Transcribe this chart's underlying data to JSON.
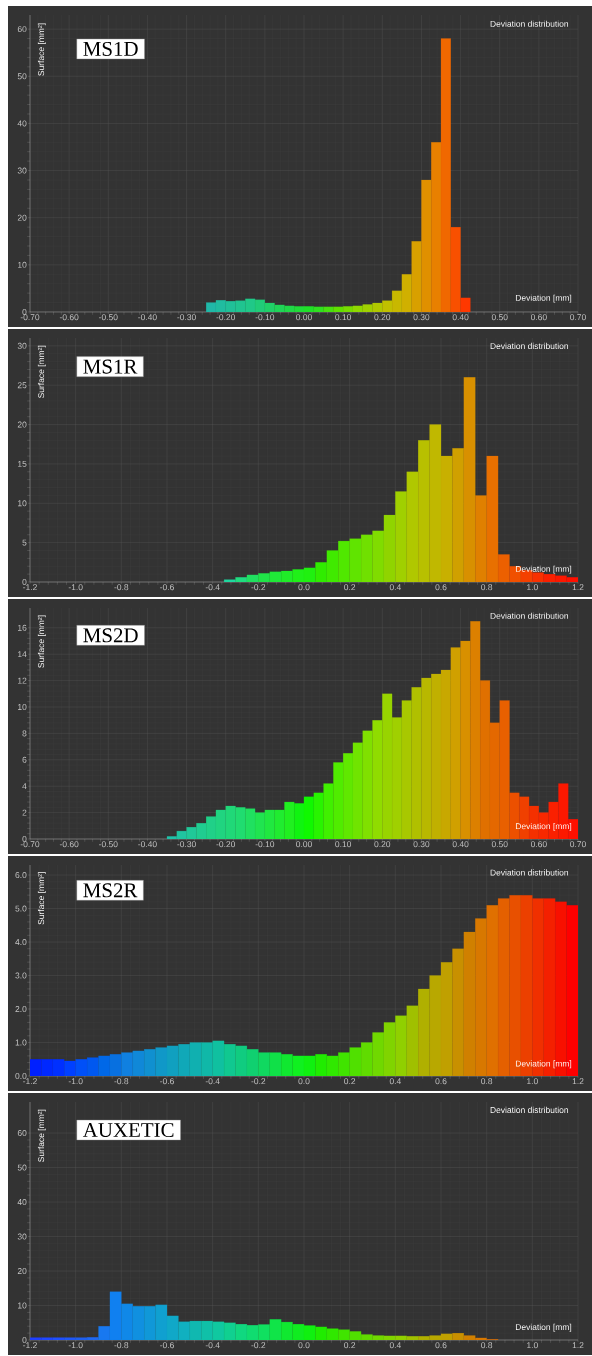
{
  "chart_data": [
    {
      "type": "histogram",
      "title": "MS1D",
      "xlabel": "Deviation [mm]",
      "ylabel": "Surface [mm²]",
      "annotations": [
        "Deviation distribution"
      ],
      "grid": true,
      "xlim": [
        -0.7,
        0.7
      ],
      "ylim": [
        0,
        63
      ],
      "xticks": [
        {
          "value": -0.7,
          "label": "-0.70"
        },
        {
          "value": -0.6,
          "label": "-0.60"
        },
        {
          "value": -0.5,
          "label": "-0.50"
        },
        {
          "value": -0.4,
          "label": "-0.40"
        },
        {
          "value": -0.3,
          "label": "-0.30"
        },
        {
          "value": -0.2,
          "label": "-0.20"
        },
        {
          "value": -0.1,
          "label": "-0.10"
        },
        {
          "value": 0,
          "label": "0.00"
        },
        {
          "value": 0.1,
          "label": "0.10"
        },
        {
          "value": 0.2,
          "label": "0.20"
        },
        {
          "value": 0.3,
          "label": "0.30"
        },
        {
          "value": 0.4,
          "label": "0.40"
        },
        {
          "value": 0.5,
          "label": "0.50"
        },
        {
          "value": 0.6,
          "label": "0.60"
        },
        {
          "value": 0.7,
          "label": "0.70"
        }
      ],
      "yticks": [
        0,
        10,
        20,
        30,
        40,
        50,
        60
      ],
      "bins": [
        -0.25,
        -0.225,
        -0.2,
        -0.175,
        -0.15,
        -0.125,
        -0.1,
        -0.075,
        -0.05,
        -0.025,
        0,
        0.025,
        0.05,
        0.075,
        0.1,
        0.125,
        0.15,
        0.175,
        0.2,
        0.225,
        0.25,
        0.275,
        0.3,
        0.325,
        0.35,
        0.375,
        0.4,
        0.425
      ],
      "values": [
        2.0,
        2.5,
        2.3,
        2.4,
        2.8,
        2.6,
        1.9,
        1.5,
        1.3,
        1.2,
        1.2,
        1.1,
        1.1,
        1.1,
        1.2,
        1.3,
        1.6,
        1.9,
        2.4,
        4.5,
        8,
        15,
        28,
        36,
        58,
        18,
        3
      ],
      "colors": [
        "#20b8a8",
        "#20bca0",
        "#20c098",
        "#20c490",
        "#20c888",
        "#20cc78",
        "#20d068",
        "#20d458",
        "#20d848",
        "#20dc38",
        "#20e028",
        "#30e020",
        "#48e010",
        "#60e000",
        "#78dc00",
        "#90d800",
        "#a0d000",
        "#b0c800",
        "#c0c000",
        "#c8b800",
        "#d0b000",
        "#d8a000",
        "#e09000",
        "#e88000",
        "#f06800",
        "#f85000",
        "#ff3800"
      ]
    },
    {
      "type": "histogram",
      "title": "MS1R",
      "xlabel": "Deviation [mm]",
      "ylabel": "Surface [mm²]",
      "annotations": [
        "Deviation distribution"
      ],
      "grid": true,
      "xlim": [
        -1.2,
        1.2
      ],
      "ylim": [
        0,
        31
      ],
      "xticks": [
        {
          "value": -1.2,
          "label": "-1.2"
        },
        {
          "value": -1.0,
          "label": "-1.0"
        },
        {
          "value": -0.8,
          "label": "-0.8"
        },
        {
          "value": -0.6,
          "label": "-0.6"
        },
        {
          "value": -0.4,
          "label": "-0.4"
        },
        {
          "value": -0.2,
          "label": "-0.2"
        },
        {
          "value": 0,
          "label": "0.0"
        },
        {
          "value": 0.2,
          "label": "0.2"
        },
        {
          "value": 0.4,
          "label": "0.4"
        },
        {
          "value": 0.6,
          "label": "0.6"
        },
        {
          "value": 0.8,
          "label": "0.8"
        },
        {
          "value": 1.0,
          "label": "1.0"
        },
        {
          "value": 1.2,
          "label": "1.2"
        }
      ],
      "yticks": [
        0,
        5,
        10,
        15,
        20,
        25,
        30
      ],
      "bins": [
        -0.35,
        -0.3,
        -0.25,
        -0.2,
        -0.15,
        -0.1,
        -0.05,
        0,
        0.05,
        0.1,
        0.15,
        0.2,
        0.25,
        0.3,
        0.35,
        0.4,
        0.45,
        0.5,
        0.55,
        0.6,
        0.65,
        0.7,
        0.75,
        0.8,
        0.85,
        0.9,
        0.95,
        1.0,
        1.05,
        1.1,
        1.15,
        1.2
      ],
      "values": [
        0.3,
        0.6,
        0.9,
        1.1,
        1.3,
        1.4,
        1.6,
        1.8,
        2.5,
        4.0,
        5.2,
        5.5,
        6.0,
        6.5,
        8.5,
        11.5,
        14,
        18,
        20,
        16,
        17,
        26,
        11,
        16,
        3.5,
        2.0,
        1.5,
        1.2,
        1.0,
        0.8,
        0.6
      ],
      "colors": [
        "#20d8a0",
        "#20dc80",
        "#20e060",
        "#20e448",
        "#20e838",
        "#20ec28",
        "#20f018",
        "#20f010",
        "#30ec00",
        "#40ea00",
        "#50e800",
        "#60e400",
        "#70e000",
        "#80dc00",
        "#90d400",
        "#a0d000",
        "#b0c800",
        "#b8c000",
        "#c0b800",
        "#c8b000",
        "#d0a000",
        "#d89000",
        "#e08000",
        "#e87000",
        "#ec6000",
        "#f05000",
        "#f44000",
        "#f83000",
        "#fa2000",
        "#fc1800",
        "#ff1000"
      ]
    },
    {
      "type": "histogram",
      "title": "MS2D",
      "xlabel": "Deviation [mm]",
      "ylabel": "Surface [mm²]",
      "annotations": [
        "Deviation distribution"
      ],
      "grid": true,
      "xlim": [
        -0.7,
        0.7
      ],
      "ylim": [
        0,
        17.5
      ],
      "xticks": [
        {
          "value": -0.7,
          "label": "-0.70"
        },
        {
          "value": -0.6,
          "label": "-0.60"
        },
        {
          "value": -0.5,
          "label": "-0.50"
        },
        {
          "value": -0.4,
          "label": "-0.40"
        },
        {
          "value": -0.3,
          "label": "-0.30"
        },
        {
          "value": -0.2,
          "label": "-0.20"
        },
        {
          "value": -0.1,
          "label": "-0.10"
        },
        {
          "value": 0,
          "label": "0.00"
        },
        {
          "value": 0.1,
          "label": "0.10"
        },
        {
          "value": 0.2,
          "label": "0.20"
        },
        {
          "value": 0.3,
          "label": "0.30"
        },
        {
          "value": 0.4,
          "label": "0.40"
        },
        {
          "value": 0.5,
          "label": "0.50"
        },
        {
          "value": 0.6,
          "label": "0.60"
        },
        {
          "value": 0.7,
          "label": "0.70"
        }
      ],
      "yticks": [
        0,
        2,
        4,
        6,
        8,
        10,
        12,
        14,
        16
      ],
      "bins": [
        -0.35,
        -0.325,
        -0.3,
        -0.275,
        -0.25,
        -0.225,
        -0.2,
        -0.175,
        -0.15,
        -0.125,
        -0.1,
        -0.075,
        -0.05,
        -0.025,
        0,
        0.025,
        0.05,
        0.075,
        0.1,
        0.125,
        0.15,
        0.175,
        0.2,
        0.225,
        0.25,
        0.275,
        0.3,
        0.325,
        0.35,
        0.375,
        0.4,
        0.425,
        0.45,
        0.475,
        0.5,
        0.525,
        0.55,
        0.575,
        0.6,
        0.625,
        0.65,
        0.675,
        0.7
      ],
      "values": [
        0.2,
        0.6,
        0.9,
        1.2,
        1.7,
        2.2,
        2.5,
        2.4,
        2.3,
        2.0,
        2.2,
        2.2,
        2.8,
        2.7,
        3.2,
        3.5,
        4.2,
        5.8,
        6.5,
        7.3,
        8.2,
        9.0,
        11,
        9.2,
        10.5,
        11.5,
        12.2,
        12.5,
        12.8,
        14.5,
        15,
        16.5,
        12,
        8.8,
        10.5,
        3.5,
        3.2,
        2.5,
        2.0,
        2.8,
        4.2,
        1.5
      ],
      "colors": [
        "#20c0a8",
        "#20c4a0",
        "#20c898",
        "#20cc90",
        "#20d088",
        "#20d480",
        "#20d878",
        "#20dc70",
        "#20e060",
        "#20e450",
        "#20e840",
        "#20ec30",
        "#20f020",
        "#10f410",
        "#10f800",
        "#28f400",
        "#40f000",
        "#50ec00",
        "#60e800",
        "#70e400",
        "#80e000",
        "#90dc00",
        "#98d400",
        "#a0d000",
        "#a8c800",
        "#b0c000",
        "#b8b800",
        "#c0b000",
        "#c8a800",
        "#d0a000",
        "#d89000",
        "#dc8000",
        "#e07000",
        "#e46800",
        "#e86000",
        "#ec5000",
        "#f04000",
        "#f43000",
        "#f82800",
        "#fa2000",
        "#fc1800",
        "#ff1000"
      ]
    },
    {
      "type": "histogram",
      "title": "MS2R",
      "xlabel": "Deviation [mm]",
      "ylabel": "Surface [mm²]",
      "annotations": [
        "Deviation distribution"
      ],
      "grid": true,
      "xlim": [
        -1.2,
        1.2
      ],
      "ylim": [
        0,
        6.3
      ],
      "xticks": [
        {
          "value": -1.2,
          "label": "-1.2"
        },
        {
          "value": -1.0,
          "label": "-1.0"
        },
        {
          "value": -0.8,
          "label": "-0.8"
        },
        {
          "value": -0.6,
          "label": "-0.6"
        },
        {
          "value": -0.4,
          "label": "-0.4"
        },
        {
          "value": -0.2,
          "label": "-0.2"
        },
        {
          "value": 0,
          "label": "0.0"
        },
        {
          "value": 0.2,
          "label": "0.2"
        },
        {
          "value": 0.4,
          "label": "0.4"
        },
        {
          "value": 0.6,
          "label": "0.6"
        },
        {
          "value": 0.8,
          "label": "0.8"
        },
        {
          "value": 1.0,
          "label": "1.0"
        },
        {
          "value": 1.2,
          "label": "1.2"
        }
      ],
      "yticks": [
        {
          "value": 0,
          "label": "0.0"
        },
        {
          "value": 1,
          "label": "1.0"
        },
        {
          "value": 2,
          "label": "2.0"
        },
        {
          "value": 3,
          "label": "3.0"
        },
        {
          "value": 4,
          "label": "4.0"
        },
        {
          "value": 5,
          "label": "5.0"
        },
        {
          "value": 6,
          "label": "6.0"
        }
      ],
      "bins": [
        -1.2,
        -1.15,
        -1.1,
        -1.05,
        -1.0,
        -0.95,
        -0.9,
        -0.85,
        -0.8,
        -0.75,
        -0.7,
        -0.65,
        -0.6,
        -0.55,
        -0.5,
        -0.45,
        -0.4,
        -0.35,
        -0.3,
        -0.25,
        -0.2,
        -0.15,
        -0.1,
        -0.05,
        0,
        0.05,
        0.1,
        0.15,
        0.2,
        0.25,
        0.3,
        0.35,
        0.4,
        0.45,
        0.5,
        0.55,
        0.6,
        0.65,
        0.7,
        0.75,
        0.8,
        0.85,
        0.9,
        0.95,
        1.0,
        1.05,
        1.1,
        1.15,
        1.2
      ],
      "values": [
        0.5,
        0.5,
        0.5,
        0.45,
        0.5,
        0.55,
        0.6,
        0.65,
        0.7,
        0.75,
        0.8,
        0.85,
        0.9,
        0.95,
        1.0,
        1.0,
        1.05,
        0.95,
        0.9,
        0.8,
        0.7,
        0.7,
        0.65,
        0.6,
        0.6,
        0.65,
        0.6,
        0.7,
        0.85,
        1.0,
        1.3,
        1.6,
        1.8,
        2.1,
        2.6,
        3.0,
        3.4,
        3.8,
        4.3,
        4.7,
        5.1,
        5.3,
        5.4,
        5.4,
        5.3,
        5.3,
        5.2,
        5.1
      ],
      "colors": [
        "#0020ff",
        "#0028ff",
        "#0030ff",
        "#0040ff",
        "#0050f8",
        "#0058f0",
        "#0068e8",
        "#0870e0",
        "#1080e0",
        "#1088d8",
        "#1090d0",
        "#1098c8",
        "#10a0c0",
        "#10a8b8",
        "#10b0b0",
        "#10b8a8",
        "#10c0a0",
        "#10c890",
        "#10cc80",
        "#10d070",
        "#10d860",
        "#10e048",
        "#10e830",
        "#10f020",
        "#10f010",
        "#20ec00",
        "#30e800",
        "#40e400",
        "#50e000",
        "#60dc00",
        "#70d800",
        "#80d400",
        "#90d000",
        "#a0c000",
        "#b0b000",
        "#b8a800",
        "#c0a000",
        "#c89000",
        "#d08000",
        "#d87800",
        "#e07000",
        "#e46000",
        "#e85000",
        "#ec4000",
        "#f03000",
        "#f42000",
        "#f81000",
        "#ff0000"
      ]
    },
    {
      "type": "histogram",
      "title": "AUXETIC",
      "xlabel": "Deviation [mm]",
      "ylabel": "Surface [mm²]",
      "annotations": [
        "Deviation distribution"
      ],
      "grid": true,
      "xlim": [
        -1.2,
        1.2
      ],
      "ylim": [
        0,
        69
      ],
      "xticks": [
        {
          "value": -1.2,
          "label": "-1.2"
        },
        {
          "value": -1.0,
          "label": "-1.0"
        },
        {
          "value": -0.8,
          "label": "-0.8"
        },
        {
          "value": -0.6,
          "label": "-0.6"
        },
        {
          "value": -0.4,
          "label": "-0.4"
        },
        {
          "value": -0.2,
          "label": "-0.2"
        },
        {
          "value": 0,
          "label": "0.0"
        },
        {
          "value": 0.2,
          "label": "0.2"
        },
        {
          "value": 0.4,
          "label": "0.4"
        },
        {
          "value": 0.6,
          "label": "0.6"
        },
        {
          "value": 0.8,
          "label": "0.8"
        },
        {
          "value": 1.0,
          "label": "1.0"
        },
        {
          "value": 1.2,
          "label": "1.2"
        }
      ],
      "yticks": [
        0,
        10,
        20,
        30,
        40,
        50,
        60
      ],
      "bins": [
        -1.2,
        -1.15,
        -1.1,
        -1.05,
        -1.0,
        -0.95,
        -0.9,
        -0.85,
        -0.8,
        -0.75,
        -0.7,
        -0.65,
        -0.6,
        -0.55,
        -0.5,
        -0.45,
        -0.4,
        -0.35,
        -0.3,
        -0.25,
        -0.2,
        -0.15,
        -0.1,
        -0.05,
        0,
        0.05,
        0.1,
        0.15,
        0.2,
        0.25,
        0.3,
        0.35,
        0.4,
        0.45,
        0.5,
        0.55,
        0.6,
        0.65,
        0.7,
        0.75,
        0.8,
        0.85
      ],
      "values": [
        0.7,
        0.7,
        0.7,
        0.7,
        0.7,
        0.8,
        4,
        14,
        10.5,
        9.8,
        9.8,
        10.2,
        7,
        5.3,
        5.5,
        5.5,
        5.3,
        5.0,
        4.6,
        4.3,
        4.5,
        6.0,
        5.2,
        4.6,
        4.2,
        3.8,
        3.3,
        3.0,
        2.5,
        1.6,
        1.3,
        1.2,
        1.2,
        1.1,
        1.1,
        1.3,
        1.8,
        2.0,
        1.3,
        0.6,
        0.2
      ],
      "colors": [
        "#2040ff",
        "#2048ff",
        "#2050ff",
        "#2058f8",
        "#2060f0",
        "#2068f0",
        "#1878f0",
        "#1080f0",
        "#1088e8",
        "#1090e0",
        "#1098d8",
        "#10a0d0",
        "#10a8c8",
        "#10b0c0",
        "#10b8b0",
        "#10c0a8",
        "#10c8a0",
        "#10d090",
        "#10d880",
        "#10dc70",
        "#10e060",
        "#10e448",
        "#10e830",
        "#10ec20",
        "#10f010",
        "#20ec00",
        "#30e800",
        "#40e400",
        "#50e000",
        "#60dc00",
        "#70d800",
        "#80d400",
        "#90d000",
        "#a0c000",
        "#b0b000",
        "#b8a800",
        "#c0a000",
        "#c89000",
        "#d08000",
        "#d87800",
        "#e07000"
      ]
    }
  ]
}
